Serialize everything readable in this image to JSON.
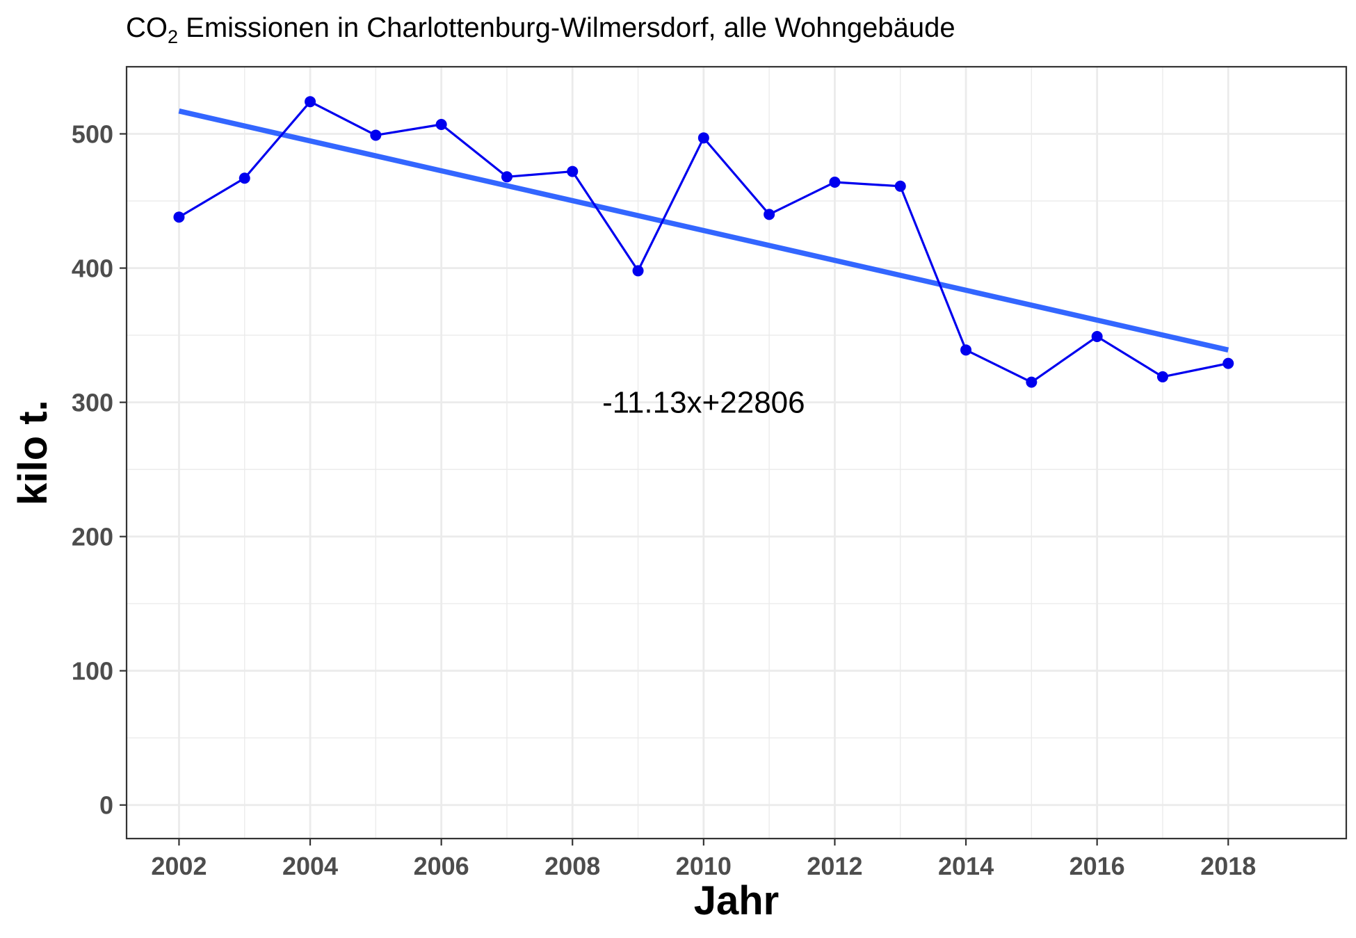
{
  "chart_data": {
    "type": "line",
    "title": {
      "prefix": "CO",
      "subscript": "2",
      "rest": " Emissionen in Charlottenburg-Wilmersdorf, alle Wohngebäude"
    },
    "xlabel": "Jahr",
    "ylabel": "kilo t.",
    "xlim": [
      2001.2,
      2019.8
    ],
    "ylim": [
      -25,
      550
    ],
    "x_ticks": [
      2002,
      2004,
      2006,
      2008,
      2010,
      2012,
      2014,
      2016,
      2018
    ],
    "y_ticks": [
      0,
      100,
      200,
      300,
      400,
      500
    ],
    "x_tick_labels": [
      "2002",
      "2004",
      "2006",
      "2008",
      "2010",
      "2012",
      "2014",
      "2016",
      "2018"
    ],
    "y_tick_labels": [
      "0",
      "100",
      "200",
      "300",
      "400",
      "500"
    ],
    "grid": true,
    "series": [
      {
        "color": "#0000ee",
        "x": [
          2002,
          2003,
          2004,
          2005,
          2006,
          2007,
          2008,
          2009,
          2010,
          2011,
          2012,
          2013,
          2014,
          2015,
          2016,
          2017,
          2018
        ],
        "y": [
          438,
          467,
          524,
          499,
          507,
          468,
          472,
          398,
          497,
          440,
          464,
          461,
          339,
          315,
          349,
          319,
          329
        ]
      }
    ],
    "trendline": {
      "color": "#3366ff",
      "slope": -11.13,
      "intercept": 22806,
      "x_range": [
        2002,
        2018
      ],
      "y_values": [
        517,
        339
      ]
    },
    "annotations": [
      {
        "text": "-11.13x+22806",
        "x": 2010,
        "y": 300
      }
    ]
  }
}
